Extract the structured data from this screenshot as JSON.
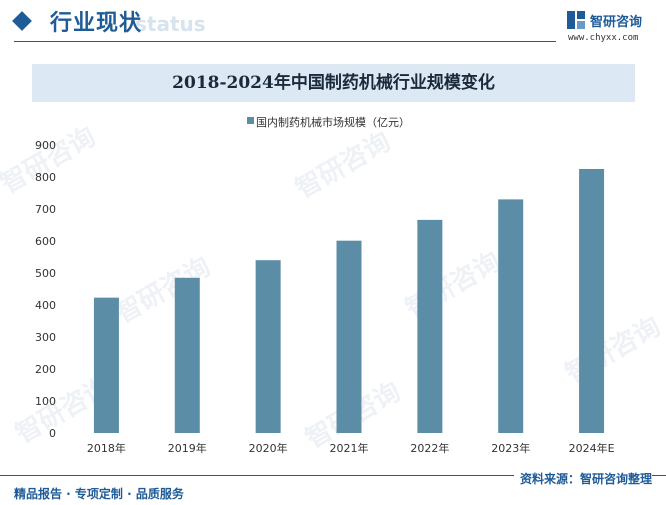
{
  "header": {
    "section_title": "行业现状",
    "section_title_bg": "status",
    "brand_name": "智研咨询",
    "brand_url": "www.chyxx.com"
  },
  "watermark_text": "智研咨询",
  "chart_data": {
    "type": "bar",
    "title": "2018-2024年中国制药机械行业规模变化",
    "categories": [
      "2018年",
      "2019年",
      "2020年",
      "2021年",
      "2022年",
      "2023年",
      "2024年E"
    ],
    "series": [
      {
        "name": "国内制药机械市场规模（亿元）",
        "values": [
          423,
          485,
          540,
          601,
          666,
          730,
          825
        ]
      }
    ],
    "ylim": [
      0,
      900
    ],
    "yticks": [
      "0",
      "100",
      "200",
      "300",
      "400",
      "500",
      "600",
      "700",
      "800",
      "900"
    ],
    "grid": false,
    "legend": "top",
    "bar_color": "#5b8ea6"
  },
  "footer": {
    "left": "精品报告 · 专项定制 · 品质服务",
    "right": "资料来源：智研咨询整理"
  }
}
